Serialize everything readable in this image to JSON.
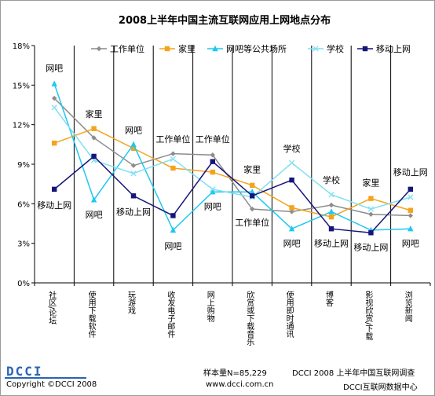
{
  "chart_data": {
    "type": "line",
    "title": "2008上半年中国主流互联网应用上网地点分布",
    "categories": [
      "社区/论坛",
      "使用下载软件",
      "玩游戏",
      "收发电子邮件",
      "网上购物",
      "欣赏或下载音乐",
      "使用即时通讯",
      "博客",
      "影视欣赏/下载",
      "浏览新闻"
    ],
    "ylim": [
      0,
      18
    ],
    "y_ticks": [
      "0%",
      "3%",
      "6%",
      "9%",
      "12%",
      "15%",
      "18%"
    ],
    "grid": "vertical",
    "legend_position": "top",
    "series": [
      {
        "name": "工作单位",
        "color": "#8c8c8c",
        "marker": "diamond",
        "values": [
          14.0,
          11.0,
          8.9,
          9.8,
          9.7,
          5.6,
          5.4,
          5.9,
          5.2,
          5.1
        ]
      },
      {
        "name": "家里",
        "color": "#f5a31c",
        "marker": "square",
        "values": [
          10.6,
          11.7,
          10.2,
          8.7,
          8.4,
          7.4,
          5.7,
          5.0,
          6.4,
          5.5
        ]
      },
      {
        "name": "网吧等公共场所",
        "color": "#1ec8f0",
        "marker": "triangle",
        "values": [
          15.1,
          6.3,
          10.5,
          4.0,
          6.9,
          6.9,
          4.1,
          5.4,
          4.0,
          4.1
        ]
      },
      {
        "name": "学校",
        "color": "#7fe0f2",
        "marker": "cross",
        "values": [
          13.3,
          9.3,
          8.3,
          9.4,
          7.1,
          6.5,
          9.1,
          6.7,
          5.6,
          6.5
        ]
      },
      {
        "name": "移动上网",
        "color": "#15157a",
        "marker": "square",
        "values": [
          7.1,
          9.6,
          6.6,
          5.1,
          9.2,
          6.6,
          7.8,
          4.1,
          3.8,
          7.1
        ]
      }
    ],
    "annotations": [
      {
        "text": "网吧",
        "cat": 0,
        "y": 16.3
      },
      {
        "text": "移动上网",
        "cat": 0,
        "y": 5.9
      },
      {
        "text": "家里",
        "cat": 1,
        "y": 12.8
      },
      {
        "text": "网吧",
        "cat": 1,
        "y": 5.2
      },
      {
        "text": "网吧",
        "cat": 2,
        "y": 11.6
      },
      {
        "text": "移动上网",
        "cat": 2,
        "y": 5.4
      },
      {
        "text": "工作单位",
        "cat": 3,
        "y": 10.9
      },
      {
        "text": "网吧",
        "cat": 3,
        "y": 2.8
      },
      {
        "text": "工作单位",
        "cat": 4,
        "y": 10.9
      },
      {
        "text": "网吧",
        "cat": 4,
        "y": 5.8
      },
      {
        "text": "家里",
        "cat": 5,
        "y": 8.6
      },
      {
        "text": "工作单位",
        "cat": 5,
        "y": 4.6
      },
      {
        "text": "学校",
        "cat": 6,
        "y": 10.2
      },
      {
        "text": "网吧",
        "cat": 6,
        "y": 3.0
      },
      {
        "text": "学校",
        "cat": 7,
        "y": 7.8
      },
      {
        "text": "移动上网",
        "cat": 7,
        "y": 3.0
      },
      {
        "text": "家里",
        "cat": 8,
        "y": 7.6
      },
      {
        "text": "移动上网",
        "cat": 8,
        "y": 2.7
      },
      {
        "text": "移动上网",
        "cat": 9,
        "y": 8.4
      },
      {
        "text": "网吧",
        "cat": 9,
        "y": 3.0
      }
    ]
  },
  "footer": {
    "logo": "DCCI",
    "copyright": "Copyright ©DCCI 2008",
    "sample": "样本量N=85,229",
    "survey": "DCCI 2008 上半年中国互联网调查",
    "website": "www.dcci.com.cn",
    "center": "DCCI互联网数据中心"
  }
}
